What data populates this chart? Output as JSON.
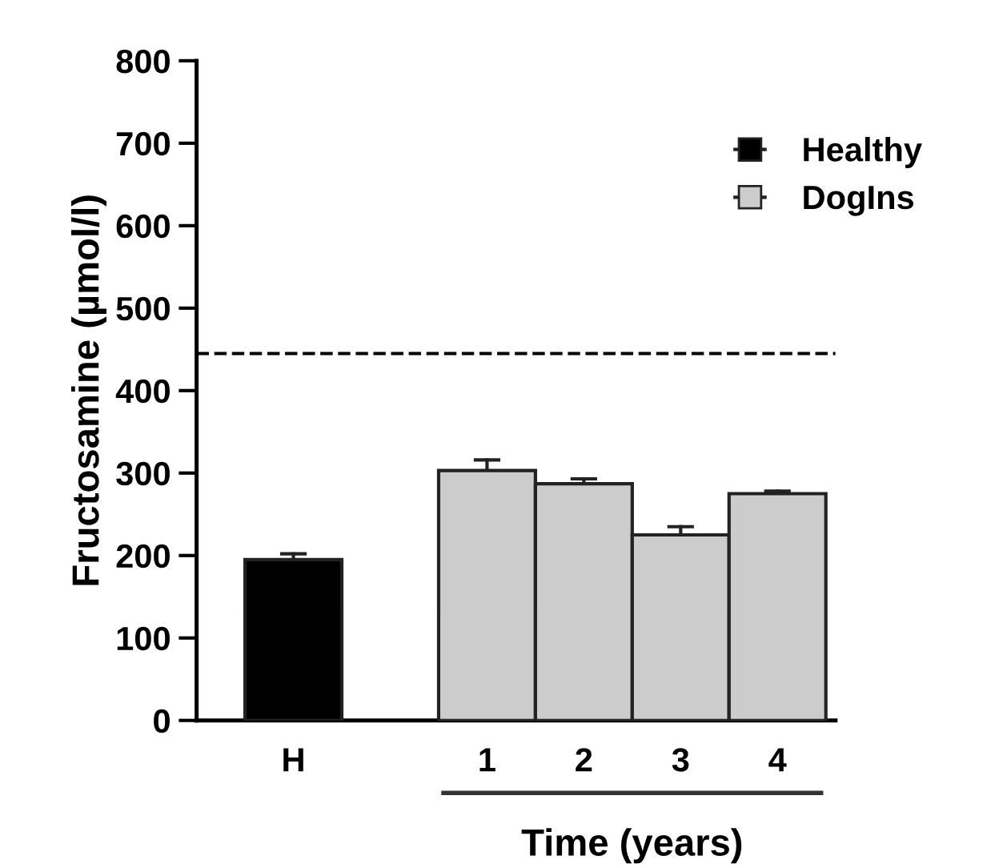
{
  "chart_data": {
    "type": "bar",
    "xlabel": "Time (years)",
    "ylabel": "Fructosamine (µmol/l)",
    "categories": [
      "H",
      null,
      "1",
      "2",
      "3",
      "4"
    ],
    "series": [
      {
        "name": "Healthy",
        "color": "#000000",
        "values": [
          195,
          null,
          null,
          null,
          null,
          null
        ],
        "errors": [
          [
            195,
            202
          ],
          null,
          null,
          null,
          null,
          null
        ]
      },
      {
        "name": "DogIns",
        "color": "#cccccc",
        "values": [
          null,
          null,
          303,
          287,
          225,
          275
        ],
        "errors": [
          null,
          null,
          [
            303,
            316
          ],
          [
            287,
            293
          ],
          [
            225,
            235
          ],
          [
            275,
            278
          ]
        ]
      }
    ],
    "ylim": [
      0,
      800
    ],
    "yticks": [
      0,
      100,
      200,
      300,
      400,
      500,
      600,
      700,
      800
    ],
    "ref_lines": [
      {
        "axis": "y",
        "value": 445,
        "line_style": "dashed",
        "color": "#000000"
      }
    ],
    "grid": false,
    "legend": "top right"
  }
}
